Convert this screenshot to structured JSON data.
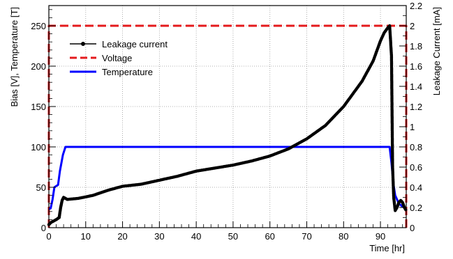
{
  "chart_data": {
    "type": "line",
    "xlabel": "Time [hr]",
    "ylabel_left": "Bias [V], Temperature [T]",
    "ylabel_right": "Leakage Current [mA]",
    "xlim": [
      0,
      97
    ],
    "ylim_left": [
      0,
      275
    ],
    "ylim_right": [
      0,
      2.2
    ],
    "grid": true,
    "legend_position": "top-left",
    "x_ticks": [
      0,
      10,
      20,
      30,
      40,
      50,
      60,
      70,
      80,
      90
    ],
    "y_left_ticks": [
      0,
      50,
      100,
      150,
      200,
      250
    ],
    "y_right_ticks": [
      0,
      0.2,
      0.4,
      0.6,
      0.8,
      1,
      1.2,
      1.4,
      1.6,
      1.8,
      2,
      2.2
    ],
    "series": [
      {
        "name": "Leakage current",
        "axis": "right",
        "color": "#000000",
        "style": "line-markers",
        "points": [
          [
            0,
            0.03
          ],
          [
            0.5,
            0.05
          ],
          [
            1,
            0.06
          ],
          [
            2,
            0.08
          ],
          [
            2.8,
            0.1
          ],
          [
            3.2,
            0.2
          ],
          [
            3.6,
            0.27
          ],
          [
            4,
            0.3
          ],
          [
            4.5,
            0.29
          ],
          [
            5,
            0.28
          ],
          [
            8,
            0.29
          ],
          [
            12,
            0.32
          ],
          [
            16,
            0.37
          ],
          [
            20,
            0.41
          ],
          [
            25,
            0.43
          ],
          [
            30,
            0.47
          ],
          [
            35,
            0.51
          ],
          [
            40,
            0.56
          ],
          [
            45,
            0.59
          ],
          [
            50,
            0.62
          ],
          [
            55,
            0.66
          ],
          [
            60,
            0.71
          ],
          [
            65,
            0.78
          ],
          [
            70,
            0.88
          ],
          [
            75,
            1.01
          ],
          [
            80,
            1.2
          ],
          [
            85,
            1.45
          ],
          [
            88,
            1.65
          ],
          [
            90,
            1.85
          ],
          [
            91,
            1.93
          ],
          [
            92,
            1.98
          ],
          [
            92.5,
            2.0
          ],
          [
            93,
            1.7
          ],
          [
            93.3,
            0.6
          ],
          [
            93.6,
            0.3
          ],
          [
            94,
            0.17
          ],
          [
            94.5,
            0.2
          ],
          [
            95,
            0.25
          ],
          [
            95.5,
            0.27
          ],
          [
            96,
            0.25
          ],
          [
            96.5,
            0.2
          ],
          [
            97,
            0.17
          ]
        ]
      },
      {
        "name": "Voltage",
        "axis": "left",
        "color": "#e41a1c",
        "style": "dashed",
        "points": [
          [
            0,
            0
          ],
          [
            0,
            250
          ],
          [
            97,
            250
          ],
          [
            97,
            0
          ]
        ]
      },
      {
        "name": "Temperature",
        "axis": "left",
        "color": "#0000ff",
        "style": "line",
        "points": [
          [
            0,
            23
          ],
          [
            0.5,
            24
          ],
          [
            1,
            35
          ],
          [
            1.5,
            50
          ],
          [
            2.5,
            53
          ],
          [
            3,
            70
          ],
          [
            3.8,
            90
          ],
          [
            4.5,
            100
          ],
          [
            92.5,
            100
          ],
          [
            93,
            80
          ],
          [
            93.5,
            55
          ],
          [
            94,
            40
          ],
          [
            95,
            30
          ],
          [
            96,
            26
          ],
          [
            97,
            24
          ]
        ]
      }
    ]
  }
}
